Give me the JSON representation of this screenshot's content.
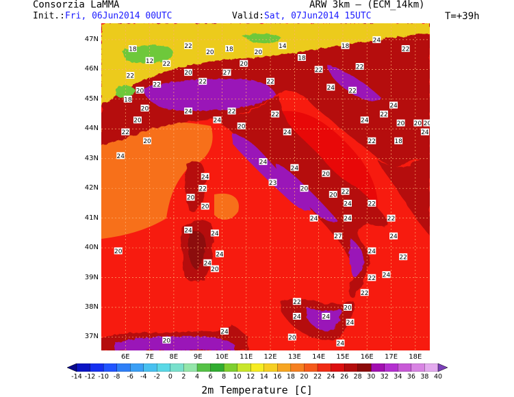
{
  "header": {
    "org": "Consorzia LaMMA",
    "model": "ARW 3km – (ECM_14km)",
    "init_label": "Init.:",
    "init_value": "Fri, 06Jun2014 00UTC",
    "valid_label": "Valid:",
    "valid_value": "Sat, 07Jun2014 15UTC",
    "lead": "T=+39h"
  },
  "map": {
    "lat_labels": [
      "47N",
      "46N",
      "45N",
      "44N",
      "43N",
      "42N",
      "41N",
      "40N",
      "39N",
      "38N",
      "37N"
    ],
    "lon_labels": [
      "6E",
      "7E",
      "8E",
      "9E",
      "10E",
      "11E",
      "12E",
      "13E",
      "14E",
      "15E",
      "16E",
      "17E",
      "18E"
    ],
    "extent": {
      "lon_min": 5.0,
      "lon_max": 18.6,
      "lat_min": 36.55,
      "lat_max": 47.55
    },
    "colors": {
      "sea_mid": "#f71b0f",
      "sea_warm": "#e80808",
      "sea_cool": "#f7701a",
      "land_hot": "#b50c0c",
      "land_dark": "#8c0a0a",
      "purple": "#9a15b8",
      "mountain": "#d62e10",
      "alps_yellow": "#f6ec22",
      "alps_green": "#6ec83a",
      "grid": "#ffb070"
    },
    "station_values": [
      {
        "lon": 6.3,
        "lat": 46.7,
        "v": "18"
      },
      {
        "lon": 7.0,
        "lat": 46.3,
        "v": "12"
      },
      {
        "lon": 7.7,
        "lat": 46.2,
        "v": "22"
      },
      {
        "lon": 8.6,
        "lat": 46.8,
        "v": "22"
      },
      {
        "lon": 9.5,
        "lat": 46.6,
        "v": "20"
      },
      {
        "lon": 10.3,
        "lat": 46.7,
        "v": "18"
      },
      {
        "lon": 10.9,
        "lat": 46.2,
        "v": "20"
      },
      {
        "lon": 11.5,
        "lat": 46.6,
        "v": "20"
      },
      {
        "lon": 12.5,
        "lat": 46.8,
        "v": "14"
      },
      {
        "lon": 13.3,
        "lat": 46.4,
        "v": "18"
      },
      {
        "lon": 14.0,
        "lat": 46.0,
        "v": "22"
      },
      {
        "lon": 15.1,
        "lat": 46.8,
        "v": "18"
      },
      {
        "lon": 16.4,
        "lat": 47.0,
        "v": "24"
      },
      {
        "lon": 15.7,
        "lat": 46.1,
        "v": "22"
      },
      {
        "lon": 17.6,
        "lat": 46.7,
        "v": "22"
      },
      {
        "lon": 6.2,
        "lat": 45.8,
        "v": "22"
      },
      {
        "lon": 6.6,
        "lat": 45.3,
        "v": "20"
      },
      {
        "lon": 7.3,
        "lat": 45.5,
        "v": "22"
      },
      {
        "lon": 8.6,
        "lat": 45.9,
        "v": "20"
      },
      {
        "lon": 9.2,
        "lat": 45.6,
        "v": "22"
      },
      {
        "lon": 10.2,
        "lat": 45.9,
        "v": "27"
      },
      {
        "lon": 12.0,
        "lat": 45.6,
        "v": "22"
      },
      {
        "lon": 14.5,
        "lat": 45.4,
        "v": "24"
      },
      {
        "lon": 15.4,
        "lat": 45.3,
        "v": "22"
      },
      {
        "lon": 6.1,
        "lat": 45.0,
        "v": "18"
      },
      {
        "lon": 6.8,
        "lat": 44.7,
        "v": "20"
      },
      {
        "lon": 8.6,
        "lat": 44.6,
        "v": "24"
      },
      {
        "lon": 10.4,
        "lat": 44.6,
        "v": "22"
      },
      {
        "lon": 12.2,
        "lat": 44.5,
        "v": "22"
      },
      {
        "lon": 9.8,
        "lat": 44.3,
        "v": "24"
      },
      {
        "lon": 10.8,
        "lat": 44.1,
        "v": "20"
      },
      {
        "lon": 12.7,
        "lat": 43.9,
        "v": "24"
      },
      {
        "lon": 16.7,
        "lat": 44.5,
        "v": "22"
      },
      {
        "lon": 17.4,
        "lat": 44.2,
        "v": "20"
      },
      {
        "lon": 18.1,
        "lat": 44.2,
        "v": "20"
      },
      {
        "lon": 18.5,
        "lat": 44.2,
        "v": "20"
      },
      {
        "lon": 15.9,
        "lat": 44.3,
        "v": "24"
      },
      {
        "lon": 17.1,
        "lat": 44.8,
        "v": "24"
      },
      {
        "lon": 6.5,
        "lat": 44.3,
        "v": "20"
      },
      {
        "lon": 6.0,
        "lat": 43.9,
        "v": "22"
      },
      {
        "lon": 6.9,
        "lat": 43.6,
        "v": "20"
      },
      {
        "lon": 16.2,
        "lat": 43.6,
        "v": "22"
      },
      {
        "lon": 17.3,
        "lat": 43.6,
        "v": "18"
      },
      {
        "lon": 18.4,
        "lat": 43.9,
        "v": "24"
      },
      {
        "lon": 5.8,
        "lat": 43.1,
        "v": "24"
      },
      {
        "lon": 11.7,
        "lat": 42.9,
        "v": "24"
      },
      {
        "lon": 13.0,
        "lat": 42.7,
        "v": "24"
      },
      {
        "lon": 14.3,
        "lat": 42.5,
        "v": "20"
      },
      {
        "lon": 12.1,
        "lat": 42.2,
        "v": "23"
      },
      {
        "lon": 9.3,
        "lat": 42.4,
        "v": "24"
      },
      {
        "lon": 9.2,
        "lat": 42.0,
        "v": "22"
      },
      {
        "lon": 8.7,
        "lat": 41.7,
        "v": "20"
      },
      {
        "lon": 13.4,
        "lat": 42.0,
        "v": "20"
      },
      {
        "lon": 14.6,
        "lat": 41.8,
        "v": "20"
      },
      {
        "lon": 15.1,
        "lat": 41.9,
        "v": "22"
      },
      {
        "lon": 15.2,
        "lat": 41.5,
        "v": "24"
      },
      {
        "lon": 16.2,
        "lat": 41.5,
        "v": "22"
      },
      {
        "lon": 9.3,
        "lat": 41.4,
        "v": "20"
      },
      {
        "lon": 13.8,
        "lat": 41.0,
        "v": "24"
      },
      {
        "lon": 15.2,
        "lat": 41.0,
        "v": "24"
      },
      {
        "lon": 17.0,
        "lat": 41.0,
        "v": "22"
      },
      {
        "lon": 8.6,
        "lat": 40.6,
        "v": "24"
      },
      {
        "lon": 9.7,
        "lat": 40.5,
        "v": "24"
      },
      {
        "lon": 14.8,
        "lat": 40.4,
        "v": "27"
      },
      {
        "lon": 17.1,
        "lat": 40.4,
        "v": "24"
      },
      {
        "lon": 5.7,
        "lat": 39.9,
        "v": "20"
      },
      {
        "lon": 9.9,
        "lat": 39.8,
        "v": "24"
      },
      {
        "lon": 9.4,
        "lat": 39.5,
        "v": "24"
      },
      {
        "lon": 9.7,
        "lat": 39.3,
        "v": "20"
      },
      {
        "lon": 16.2,
        "lat": 39.9,
        "v": "24"
      },
      {
        "lon": 17.5,
        "lat": 39.7,
        "v": "22"
      },
      {
        "lon": 16.8,
        "lat": 39.1,
        "v": "24"
      },
      {
        "lon": 16.2,
        "lat": 39.0,
        "v": "22"
      },
      {
        "lon": 15.9,
        "lat": 38.5,
        "v": "22"
      },
      {
        "lon": 13.1,
        "lat": 38.2,
        "v": "22"
      },
      {
        "lon": 15.2,
        "lat": 38.0,
        "v": "20"
      },
      {
        "lon": 14.3,
        "lat": 37.7,
        "v": "24"
      },
      {
        "lon": 13.1,
        "lat": 37.7,
        "v": "24"
      },
      {
        "lon": 15.3,
        "lat": 37.5,
        "v": "24"
      },
      {
        "lon": 12.9,
        "lat": 37.0,
        "v": "20"
      },
      {
        "lon": 14.9,
        "lat": 36.8,
        "v": "24"
      },
      {
        "lon": 10.1,
        "lat": 37.2,
        "v": "24"
      },
      {
        "lon": 7.7,
        "lat": 36.9,
        "v": "20"
      }
    ]
  },
  "colorbar": {
    "title": "2m Temperature [C]",
    "labels": [
      "-14",
      "-12",
      "-10",
      "-8",
      "-6",
      "-4",
      "-2",
      "0",
      "2",
      "4",
      "6",
      "8",
      "10",
      "12",
      "14",
      "16",
      "18",
      "20",
      "22",
      "24",
      "26",
      "28",
      "30",
      "32",
      "34",
      "36",
      "38",
      "40"
    ],
    "colors": [
      "#0a0a8c",
      "#0b14c4",
      "#1530f0",
      "#2255ff",
      "#2f7ff7",
      "#3a9ff5",
      "#47c0f0",
      "#5ad8e6",
      "#79e0cc",
      "#94e6aa",
      "#55c246",
      "#30ac30",
      "#7ecf2f",
      "#c8e62b",
      "#f6ec22",
      "#f6cf22",
      "#f6a522",
      "#f68020",
      "#f55a1a",
      "#f02b14",
      "#dc0f0f",
      "#b40c0c",
      "#8c0a0a",
      "#a10fb0",
      "#b42fd0",
      "#c85ad7",
      "#d884e3",
      "#e4aaef",
      "#7b3fb8"
    ]
  }
}
